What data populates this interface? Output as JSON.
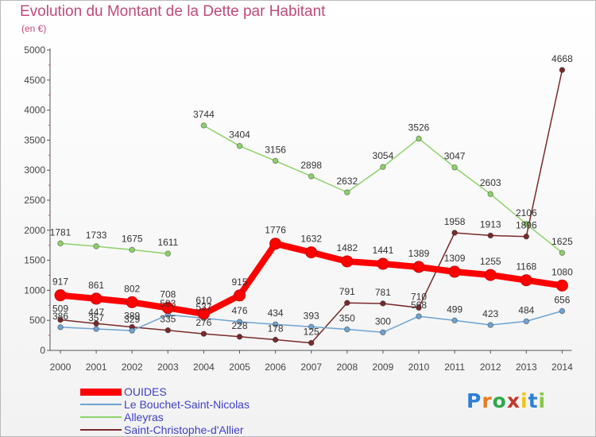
{
  "header": {
    "title": "Evolution du Montant de la Dette par Habitant",
    "subtitle": "(en €)"
  },
  "logo": {
    "text": "Proxiti",
    "letter_colors": [
      "#2e7fd6",
      "#e67e22",
      "#2ea84a",
      "#c0392b",
      "#f1c40f",
      "#2e7fd6",
      "#8bc34a"
    ]
  },
  "chart_data": {
    "type": "line",
    "title": "Evolution du Montant de la Dette par Habitant",
    "ylabel": "(en €)",
    "xlabel": "",
    "x": [
      "2000",
      "2001",
      "2002",
      "2003",
      "2004",
      "2005",
      "2006",
      "2007",
      "2008",
      "2009",
      "2010",
      "2011",
      "2012",
      "2013",
      "2014"
    ],
    "ylim": [
      0,
      5000
    ],
    "yticks": [
      "0",
      "500",
      "1000",
      "1500",
      "2000",
      "2500",
      "3000",
      "3500",
      "4000",
      "4500",
      "5000"
    ],
    "grid": false,
    "legend_position": "bottom-left",
    "series": [
      {
        "name": "OUIDES",
        "color": "#ff0000",
        "values": [
          917,
          861,
          802,
          708,
          610,
          915,
          1776,
          1632,
          1482,
          1441,
          1389,
          1309,
          1255,
          1168,
          1080
        ],
        "labels": [
          "917",
          "861",
          "802",
          "708",
          "610",
          "915",
          "1776",
          "1632",
          "1482",
          "1441",
          "1389",
          "1309",
          "1255",
          "1168",
          "1080"
        ]
      },
      {
        "name": "Le Bouchet-Saint-Nicolas",
        "color": "#6fa3d2",
        "values": [
          386,
          357,
          329,
          593,
          537,
          476,
          434,
          393,
          350,
          300,
          568,
          499,
          423,
          484,
          656
        ],
        "labels": [
          "386",
          "357",
          "329",
          "593",
          "537",
          "476",
          "434",
          "393",
          "350",
          "300",
          "568",
          "499",
          "423",
          "484",
          "656"
        ]
      },
      {
        "name": "Alleyras",
        "color": "#8ed16a",
        "values": [
          1781,
          1733,
          1675,
          1611,
          3744,
          3404,
          3156,
          2898,
          2632,
          3054,
          3526,
          3047,
          2603,
          2106,
          1625
        ],
        "labels": [
          "1781",
          "1733",
          "1675",
          "1611",
          "3744",
          "3404",
          "3156",
          "2898",
          "2632",
          "3054",
          "3526",
          "3047",
          "2603",
          "2106",
          "1625"
        ],
        "gaps_after": [
          3
        ]
      },
      {
        "name": "Saint-Christophe-d'Allier",
        "color": "#7a2a2a",
        "values": [
          509,
          447,
          389,
          335,
          276,
          228,
          178,
          125,
          791,
          781,
          710,
          1958,
          1913,
          1896,
          4668
        ],
        "labels": [
          "509",
          "447",
          "389",
          "335",
          "276",
          "228",
          "178",
          "125",
          "791",
          "781",
          "710",
          "1958",
          "1913",
          "1896",
          "4668"
        ]
      }
    ]
  }
}
